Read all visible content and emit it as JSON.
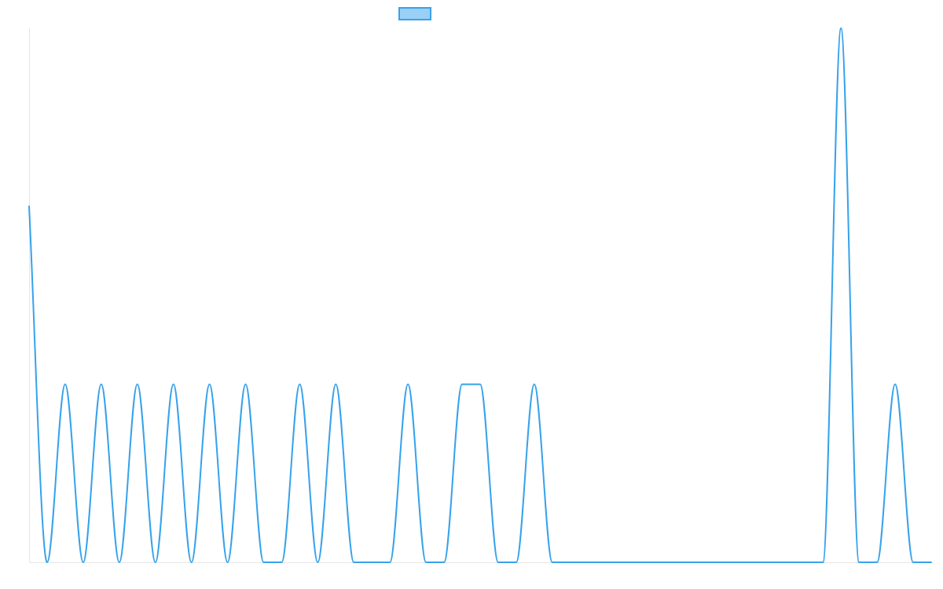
{
  "chart_data": {
    "type": "line",
    "title": "",
    "xlabel": "",
    "ylabel": "",
    "ylim": [
      0,
      3
    ],
    "grid": false,
    "legend_position": "top",
    "tick_labels_shown": false,
    "series": [
      {
        "name": "",
        "stroke_color": "#36a2eb",
        "fill_color": "#9ad0f5",
        "values": [
          2,
          0,
          1,
          0,
          1,
          0,
          1,
          0,
          1,
          0,
          1,
          0,
          1,
          0,
          0,
          1,
          0,
          1,
          0,
          0,
          0,
          1,
          0,
          0,
          1,
          1,
          0,
          0,
          1,
          0,
          0,
          0,
          0,
          0,
          0,
          0,
          0,
          0,
          0,
          0,
          0,
          0,
          0,
          0,
          0,
          3,
          0,
          0,
          1,
          0,
          0
        ]
      }
    ]
  }
}
